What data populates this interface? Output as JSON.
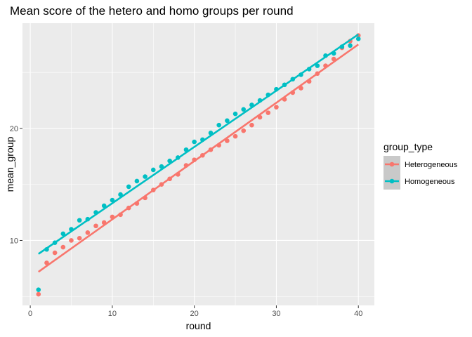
{
  "chart_data": {
    "type": "scatter",
    "title": "Mean score of the hetero and homo groups per round",
    "xlabel": "round",
    "ylabel": "mean_group",
    "xlim": [
      -0.95,
      41.95
    ],
    "ylim": [
      4.2,
      29.4
    ],
    "xticks": [
      0,
      10,
      20,
      30,
      40
    ],
    "yticks": [
      10,
      20
    ],
    "grid": true,
    "legend": {
      "title": "group_type",
      "position": "right"
    },
    "series": [
      {
        "name": "Heterogeneous",
        "color": "#F8766D",
        "x": [
          1,
          2,
          3,
          4,
          5,
          6,
          7,
          8,
          9,
          10,
          11,
          12,
          13,
          14,
          15,
          16,
          17,
          18,
          19,
          20,
          21,
          22,
          23,
          24,
          25,
          26,
          27,
          28,
          29,
          30,
          31,
          32,
          33,
          34,
          35,
          36,
          37,
          38,
          39,
          40
        ],
        "y": [
          5.2,
          8.0,
          8.9,
          9.4,
          10.0,
          10.2,
          10.7,
          11.3,
          11.6,
          12.1,
          12.3,
          12.9,
          13.3,
          13.8,
          14.5,
          15.0,
          15.5,
          15.9,
          16.7,
          17.2,
          17.6,
          18.1,
          18.5,
          18.9,
          19.3,
          19.8,
          20.3,
          21.0,
          21.4,
          21.9,
          22.6,
          23.2,
          23.6,
          24.2,
          24.9,
          25.6,
          26.2,
          27.2,
          27.8,
          28.3
        ],
        "fit": [
          7.2,
          27.5
        ]
      },
      {
        "name": "Homogeneous",
        "color": "#00BFC4",
        "x": [
          1,
          2,
          3,
          4,
          5,
          6,
          7,
          8,
          9,
          10,
          11,
          12,
          13,
          14,
          15,
          16,
          17,
          18,
          19,
          20,
          21,
          22,
          23,
          24,
          25,
          26,
          27,
          28,
          29,
          30,
          31,
          32,
          33,
          34,
          35,
          36,
          37,
          38,
          39,
          40
        ],
        "y": [
          5.6,
          9.2,
          9.8,
          10.6,
          11.0,
          11.8,
          11.9,
          12.5,
          13.1,
          13.6,
          14.1,
          14.8,
          15.3,
          15.7,
          16.3,
          16.6,
          17.1,
          17.4,
          18.1,
          18.8,
          19.0,
          19.6,
          20.3,
          20.7,
          21.3,
          21.7,
          22.1,
          22.5,
          23.0,
          23.5,
          23.9,
          24.4,
          24.8,
          25.3,
          25.6,
          26.5,
          26.7,
          27.3,
          27.4,
          28.0
        ],
        "fit": [
          8.8,
          28.4
        ]
      }
    ]
  }
}
